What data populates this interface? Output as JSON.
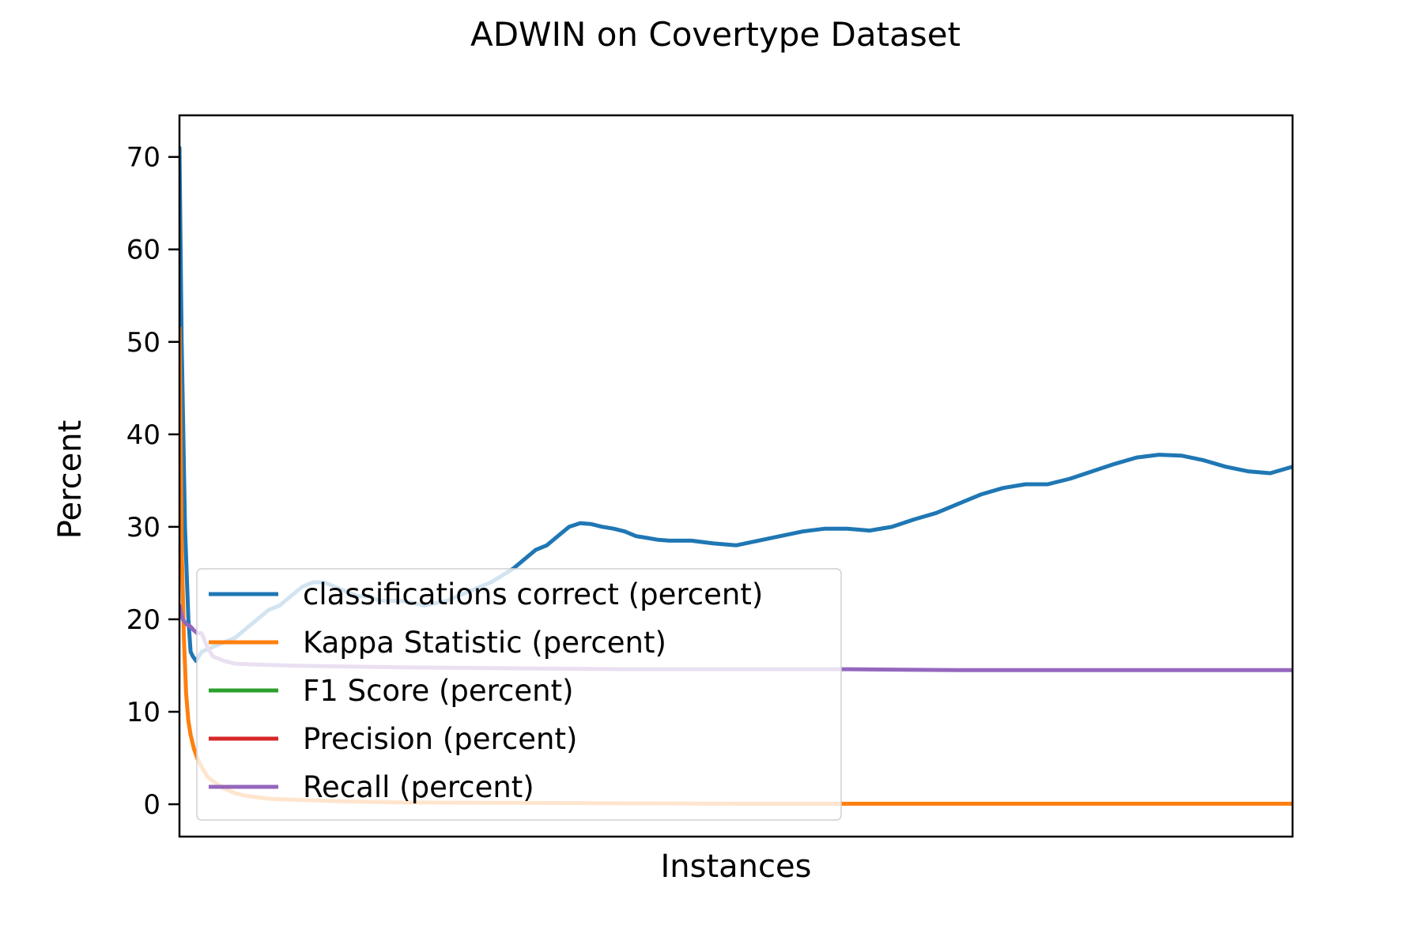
{
  "chart_data": {
    "type": "line",
    "title": "ADWIN on Covertype Dataset",
    "xlabel": "Instances",
    "ylabel": "Percent",
    "xlim": [
      0,
      100
    ],
    "ylim": [
      -3.5,
      74.5
    ],
    "yticks": [
      0,
      10,
      20,
      30,
      40,
      50,
      60,
      70
    ],
    "xticks_visible": false,
    "grid": false,
    "legend_position": "lower left",
    "series": [
      {
        "name": "classifications correct (percent)",
        "color": "#1f77b4",
        "x": [
          0,
          0.2,
          0.5,
          0.8,
          1.0,
          1.2,
          1.5,
          2,
          3,
          4,
          5,
          6,
          7,
          8,
          9,
          10,
          11,
          12,
          13,
          14,
          15,
          16,
          17,
          18,
          20,
          22,
          24,
          26,
          28,
          30,
          31,
          32,
          33,
          34,
          35,
          36,
          37,
          38,
          39,
          40,
          41,
          42,
          43,
          44,
          46,
          48,
          50,
          52,
          54,
          56,
          58,
          60,
          62,
          64,
          66,
          68,
          70,
          72,
          74,
          76,
          78,
          80,
          82,
          84,
          86,
          88,
          90,
          92,
          94,
          96,
          98,
          100
        ],
        "y": [
          71,
          50,
          30,
          20,
          16.5,
          16,
          15.5,
          16.5,
          17,
          17.5,
          18,
          19,
          20,
          21,
          21.5,
          22.5,
          23.5,
          24,
          24,
          23.5,
          23,
          22.5,
          22.5,
          22,
          22,
          21.5,
          22,
          23,
          24,
          25.5,
          26.5,
          27.5,
          28,
          29,
          30,
          30.4,
          30.3,
          30,
          29.8,
          29.5,
          29,
          28.8,
          28.6,
          28.5,
          28.5,
          28.2,
          28,
          28.5,
          29,
          29.5,
          29.8,
          29.8,
          29.6,
          30,
          30.8,
          31.5,
          32.5,
          33.5,
          34.2,
          34.6,
          34.6,
          35.2,
          36,
          36.8,
          37.5,
          37.8,
          37.7,
          37.2,
          36.5,
          36,
          35.8,
          36.5
        ]
      },
      {
        "name": "Kappa Statistic (percent)",
        "color": "#ff7f0e",
        "x": [
          0,
          0.2,
          0.4,
          0.6,
          0.8,
          1.0,
          1.3,
          1.6,
          2.0,
          2.5,
          3,
          4,
          5,
          6,
          8,
          10,
          15,
          20,
          30,
          40,
          50,
          60,
          70,
          80,
          90,
          100
        ],
        "y": [
          51.5,
          28,
          18,
          12,
          9,
          7.5,
          6,
          5,
          4,
          3,
          2.5,
          1.7,
          1.2,
          0.9,
          0.6,
          0.5,
          0.3,
          0.2,
          0.15,
          0.1,
          0.05,
          0.05,
          0.05,
          0.05,
          0.05,
          0.05
        ]
      },
      {
        "name": "F1 Score (percent)",
        "color": "#2ca02c",
        "x": [],
        "y": []
      },
      {
        "name": "Precision (percent)",
        "color": "#d62728",
        "x": [],
        "y": []
      },
      {
        "name": "Recall (percent)",
        "color": "#9467bd",
        "x": [
          0,
          0.3,
          0.6,
          1.0,
          1.3,
          1.6,
          2.0,
          2.5,
          3,
          4,
          5,
          7,
          10,
          15,
          20,
          30,
          40,
          50,
          60,
          70,
          80,
          90,
          100
        ],
        "y": [
          21.5,
          20,
          19.5,
          19.2,
          18.8,
          18.5,
          18.5,
          17,
          16,
          15.5,
          15.2,
          15.1,
          15,
          14.9,
          14.8,
          14.7,
          14.6,
          14.6,
          14.6,
          14.5,
          14.5,
          14.5,
          14.5
        ]
      }
    ]
  }
}
